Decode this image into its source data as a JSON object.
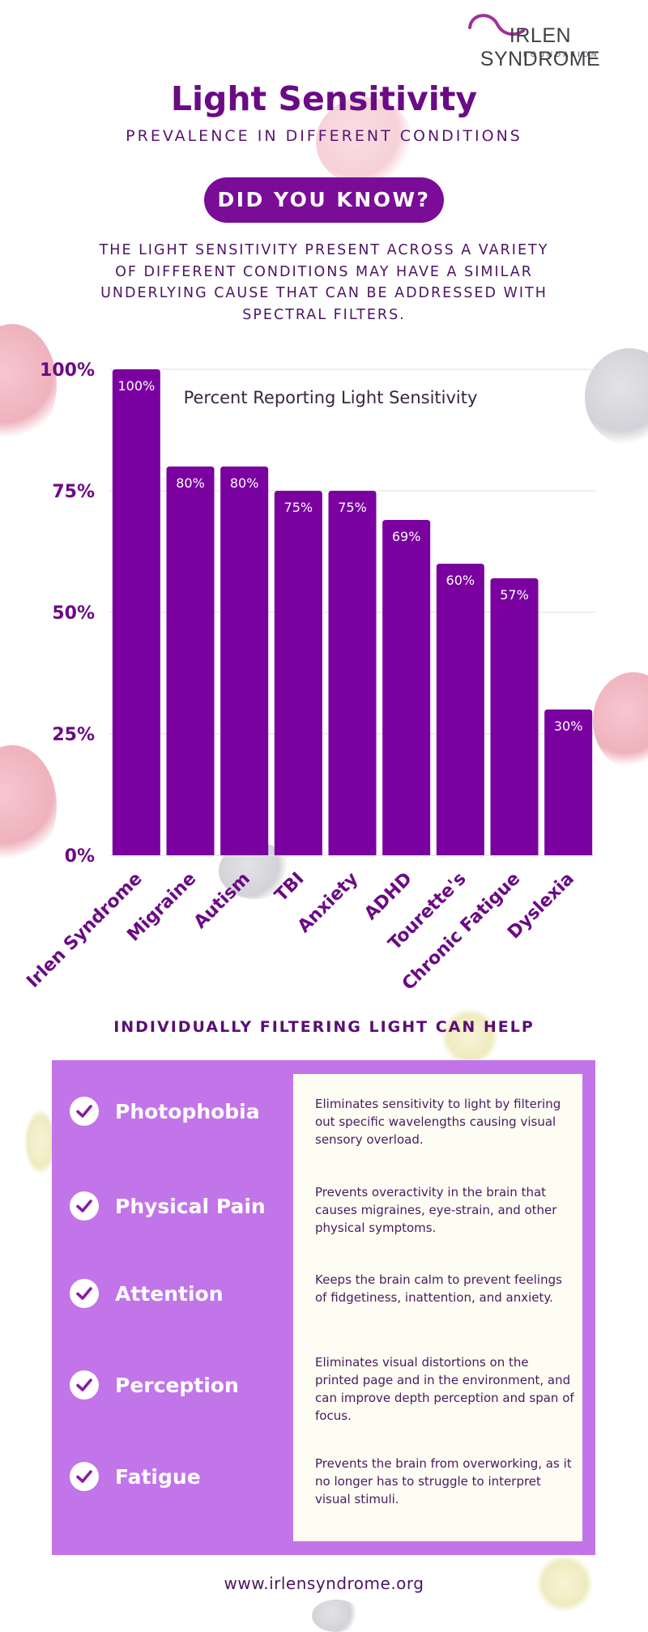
{
  "logo": {
    "main": "IRLEN SYNDROME",
    "sub": "FOUNDATION"
  },
  "header": {
    "title": "Light Sensitivity",
    "subtitle": "PREVALENCE IN DIFFERENT CONDITIONS",
    "pill": "DID YOU KNOW?",
    "intro": "THE LIGHT SENSITIVITY PRESENT ACROSS A VARIETY OF DIFFERENT CONDITIONS MAY HAVE A SIMILAR UNDERLYING CAUSE THAT CAN BE ADDRESSED WITH SPECTRAL FILTERS."
  },
  "chart_data": {
    "type": "bar",
    "title": "Percent Reporting Light Sensitivity",
    "categories": [
      "Irlen Syndrome",
      "Migraine",
      "Autism",
      "TBI",
      "Anxiety",
      "ADHD",
      "Tourette's",
      "Chronic Fatigue",
      "Dyslexia"
    ],
    "values": [
      100,
      80,
      80,
      75,
      75,
      69,
      60,
      57,
      30
    ],
    "value_labels": [
      "100%",
      "80%",
      "80%",
      "75%",
      "75%",
      "69%",
      "60%",
      "57%",
      "30%"
    ],
    "yticks": [
      0,
      25,
      50,
      75,
      100
    ],
    "ytick_labels": [
      "0%",
      "25%",
      "50%",
      "75%",
      "100%"
    ],
    "ylim": [
      0,
      100
    ],
    "grid": true,
    "bar_color": "#7a00a0",
    "grid_color": "#e4e4e4"
  },
  "benefits": {
    "heading": "INDIVIDUALLY FILTERING LIGHT CAN HELP",
    "items": [
      {
        "label": "Photophobia",
        "desc": "Eliminates sensitivity to light by filtering out specific wavelengths causing visual sensory overload."
      },
      {
        "label": "Physical Pain",
        "desc": "Prevents overactivity in the brain that causes migraines, eye-strain, and other physical symptoms."
      },
      {
        "label": "Attention",
        "desc": "Keeps the brain calm to prevent feelings of fidgetiness, inattention, and anxiety."
      },
      {
        "label": "Perception",
        "desc": "Eliminates visual distortions on the printed page and in the environment, and can improve depth perception and span of focus."
      },
      {
        "label": "Fatigue",
        "desc": "Prevents the brain from overworking, as it no longer has to struggle to interpret visual stimuli."
      }
    ],
    "icon": "check-circle-icon"
  },
  "footer": {
    "url": "www.irlensyndrome.org"
  },
  "colors": {
    "primary": "#7a0c97",
    "title": "#6b0a85",
    "panel": "#c274e9",
    "panel_inner": "#fdfdf4"
  }
}
